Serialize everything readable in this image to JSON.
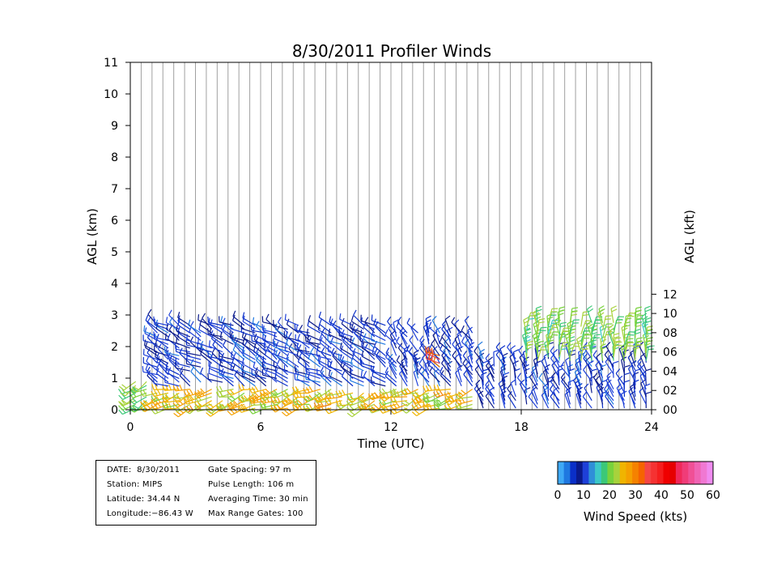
{
  "chart_data": {
    "type": "wind-barb profiler",
    "title": "8/30/2011 Profiler Winds",
    "xlabel": "Time (UTC)",
    "ylabel_left": "AGL (km)",
    "ylabel_right": "AGL (kft)",
    "xlim": [
      0,
      24
    ],
    "ylim": [
      0,
      11
    ],
    "x_ticks": [
      "0",
      "6",
      "12",
      "18",
      "24"
    ],
    "y_ticks_left": [
      "0",
      "1",
      "2",
      "3",
      "4",
      "5",
      "6",
      "7",
      "8",
      "9",
      "10",
      "11"
    ],
    "y_ticks_right": [
      "00",
      "02",
      "04",
      "06",
      "08",
      "10",
      "12"
    ],
    "grid": "vertical lines every 0.5 h",
    "wind_speed_scale": {
      "label": "Wind Speed (kts)",
      "ticks": [
        "0",
        "10",
        "20",
        "30",
        "40",
        "50",
        "60"
      ],
      "range": [
        0,
        60
      ],
      "colors": [
        "#3fa9f5",
        "#1f78e0",
        "#0a2fc8",
        "#0a1a8c",
        "#1e40d8",
        "#2f8fd8",
        "#3cc8c8",
        "#3cc878",
        "#78d23c",
        "#a8d23c",
        "#f0b400",
        "#f5a000",
        "#f58200",
        "#f56400",
        "#f54646",
        "#f53232",
        "#f51e1e",
        "#f00000",
        "#e60000",
        "#f0285a",
        "#f03c78",
        "#f05096",
        "#f064b4",
        "#f078d2",
        "#f08cf0"
      ]
    },
    "wind_regimes": [
      {
        "time_range_utc": [
          0,
          1
        ],
        "height_km": [
          0,
          1
        ],
        "speed_kts": 20,
        "direction_deg": 240
      },
      {
        "time_range_utc": [
          1,
          16
        ],
        "height_km": [
          0,
          0.7
        ],
        "speed_kts": 25,
        "direction_deg": 250
      },
      {
        "time_range_utc": [
          1,
          12
        ],
        "height_km": [
          0.7,
          2.7
        ],
        "speed_kts": 8,
        "direction_deg": 300
      },
      {
        "time_range_utc": [
          12,
          16
        ],
        "height_km": [
          0.7,
          2.5
        ],
        "speed_kts": 8,
        "direction_deg": 330
      },
      {
        "time_range_utc": [
          14,
          14.5
        ],
        "height_km": [
          1.3,
          1.8
        ],
        "speed_kts": 35,
        "direction_deg": 300
      },
      {
        "time_range_utc": [
          16,
          24
        ],
        "height_km": [
          0,
          1.7
        ],
        "speed_kts": 8,
        "direction_deg": 340
      },
      {
        "time_range_utc": [
          18,
          24
        ],
        "height_km": [
          1.5,
          2.8
        ],
        "speed_kts": 20,
        "direction_deg": 0
      }
    ]
  },
  "info": {
    "date": "DATE:  8/30/2011",
    "station": "Station: MIPS",
    "latitude": "Latitude: 34.44 N",
    "longitude": "Longitude:−86.43 W",
    "gate_spacing": "Gate Spacing: 97 m",
    "pulse_length": "Pulse Length: 106 m",
    "averaging_time": "Averaging Time: 30 min",
    "max_range_gates": "Max Range Gates: 100"
  }
}
